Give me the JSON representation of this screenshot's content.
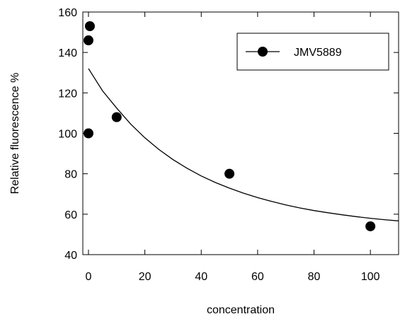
{
  "chart_data": {
    "type": "scatter",
    "xlabel": "concentration",
    "ylabel": "Relative fluorescence %",
    "xlim": [
      -2,
      110
    ],
    "ylim": [
      40,
      160
    ],
    "x_ticks": [
      0,
      20,
      40,
      60,
      80,
      100
    ],
    "y_ticks": [
      40,
      60,
      80,
      100,
      120,
      140,
      160
    ],
    "grid": false,
    "legend_position": "top-right",
    "series": [
      {
        "name": "JMV5889",
        "x": [
          0,
          0,
          0.5,
          10,
          50,
          100
        ],
        "y": [
          100,
          146,
          153,
          108,
          80,
          54
        ],
        "color": "#000000"
      }
    ],
    "fit_curve": {
      "x": [
        0,
        5,
        10,
        15,
        20,
        25,
        30,
        35,
        40,
        45,
        50,
        55,
        60,
        65,
        70,
        75,
        80,
        85,
        90,
        95,
        100,
        105,
        110
      ],
      "y": [
        132,
        121,
        112.5,
        104.5,
        97.8,
        92,
        87,
        82.7,
        78.9,
        75.7,
        72.9,
        70.4,
        68.2,
        66.3,
        64.6,
        63.1,
        61.8,
        60.7,
        59.7,
        58.8,
        58,
        57.3,
        56.7
      ]
    }
  }
}
